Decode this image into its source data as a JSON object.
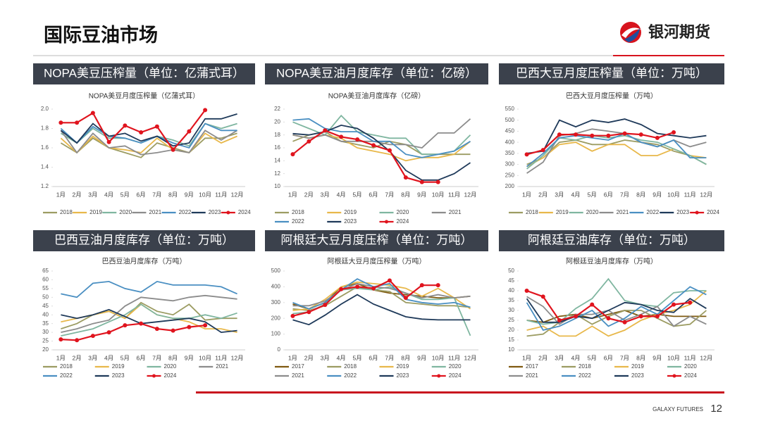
{
  "header": {
    "title": "国际豆油市场",
    "logo": "银河期货"
  },
  "footer": {
    "brand": "GALAXY FUTURES",
    "page": "12"
  },
  "chart_data": [
    {
      "type": "line",
      "title": "NOPA美豆压榨量（单位：亿蒲式耳）",
      "subtitle": "NOPA美豆月度压榨量（亿蒲式耳）",
      "categories": [
        "1月",
        "2月",
        "3月",
        "4月",
        "5月",
        "6月",
        "7月",
        "8月",
        "9月",
        "10月",
        "11月",
        "12月"
      ],
      "ylim": [
        1.2,
        2.0
      ],
      "yticks": [
        1.2,
        1.4,
        1.6,
        1.8,
        {
          "value": 2,
          "label": "2.0"
        }
      ],
      "series": [
        {
          "name": "2018",
          "color": "#9c9c62",
          "values": [
            1.65,
            1.55,
            1.7,
            1.6,
            1.55,
            1.5,
            1.65,
            1.6,
            1.55,
            1.7,
            1.7,
            1.75
          ]
        },
        {
          "name": "2019",
          "color": "#e8b84a",
          "values": [
            1.7,
            1.55,
            1.72,
            1.6,
            1.58,
            1.55,
            1.7,
            1.58,
            1.55,
            1.75,
            1.65,
            1.72
          ]
        },
        {
          "name": "2020",
          "color": "#7fb6a0",
          "values": [
            1.75,
            1.65,
            1.8,
            1.7,
            1.7,
            1.65,
            1.72,
            1.68,
            1.62,
            1.85,
            1.8,
            1.85
          ]
        },
        {
          "name": "2021",
          "color": "#8c8c8c",
          "values": [
            1.78,
            1.55,
            1.75,
            1.6,
            1.62,
            1.53,
            1.55,
            1.58,
            1.55,
            1.78,
            1.68,
            1.78
          ]
        },
        {
          "name": "2022",
          "color": "#4a8fc2",
          "values": [
            1.8,
            1.65,
            1.82,
            1.72,
            1.7,
            1.65,
            1.72,
            1.65,
            1.6,
            1.85,
            1.78,
            1.78
          ]
        },
        {
          "name": "2023",
          "color": "#1f3a5a",
          "values": [
            1.78,
            1.65,
            1.85,
            1.72,
            1.75,
            1.67,
            1.72,
            1.62,
            1.65,
            1.9,
            1.9,
            1.95
          ]
        },
        {
          "name": "2024",
          "color": "#e0141e",
          "values": [
            1.86,
            1.86,
            1.96,
            1.66,
            1.83,
            1.76,
            1.82,
            1.58,
            1.77,
            1.99,
            null,
            null
          ]
        }
      ]
    },
    {
      "type": "line",
      "title": "NOPA美豆油月度库存（单位：亿磅）",
      "subtitle": "NOPA美豆油月度库存（亿磅）",
      "categories": [
        "1月",
        "2月",
        "3月",
        "4月",
        "5月",
        "6月",
        "7月",
        "8月",
        "9月",
        "10月",
        "11月",
        "12月"
      ],
      "ylim": [
        10,
        22
      ],
      "yticks": [
        10,
        12,
        14,
        16,
        18,
        20,
        22
      ],
      "series": [
        {
          "name": "2018",
          "color": "#9c9c62",
          "values": [
            17,
            18,
            18.5,
            17,
            16.5,
            16,
            17,
            16.5,
            15,
            15,
            15,
            15
          ]
        },
        {
          "name": "2019",
          "color": "#e8b84a",
          "values": [
            18,
            17.5,
            18,
            17.5,
            16,
            15.5,
            15,
            14,
            14.5,
            14.5,
            15,
            17
          ]
        },
        {
          "name": "2020",
          "color": "#7fb6a0",
          "values": [
            20,
            19,
            18,
            21,
            18.5,
            18,
            17.5,
            17.5,
            15,
            15,
            15.5,
            18
          ]
        },
        {
          "name": "2021",
          "color": "#8c8c8c",
          "values": [
            18,
            17.5,
            18,
            17,
            17,
            17,
            16.5,
            16.5,
            16,
            18.3,
            18.3,
            20.5
          ]
        },
        {
          "name": "2022",
          "color": "#4a8fc2",
          "values": [
            20.3,
            20.5,
            19,
            18.5,
            18.5,
            17,
            17,
            15,
            14.5,
            15,
            15.5,
            17
          ]
        },
        {
          "name": "2023",
          "color": "#1f3a5a",
          "values": [
            18.2,
            18,
            18.5,
            19.5,
            19,
            17.5,
            15.5,
            12.5,
            11,
            11,
            12,
            13.7
          ]
        },
        {
          "name": "2024",
          "color": "#e0141e",
          "values": [
            15,
            17,
            18.7,
            17.7,
            17.3,
            16.4,
            15.6,
            11.4,
            10.7,
            10.7,
            null,
            null
          ]
        }
      ]
    },
    {
      "type": "line",
      "title": "巴西大豆月度压榨量（单位：万吨）",
      "subtitle": "巴西大豆月度压榨量（万吨）",
      "categories": [
        "1月",
        "2月",
        "3月",
        "4月",
        "5月",
        "6月",
        "7月",
        "8月",
        "9月",
        "10月",
        "11月",
        "12月"
      ],
      "ylim": [
        200,
        550
      ],
      "yticks": [
        200,
        250,
        300,
        350,
        400,
        450,
        500,
        550
      ],
      "series": [
        {
          "name": "2018",
          "color": "#9c9c62",
          "values": [
            300,
            330,
            400,
            410,
            390,
            390,
            410,
            400,
            390,
            360,
            340,
            300
          ]
        },
        {
          "name": "2019",
          "color": "#e8b84a",
          "values": [
            290,
            330,
            390,
            400,
            360,
            390,
            390,
            340,
            340,
            370,
            340,
            330
          ]
        },
        {
          "name": "2020",
          "color": "#7fb6a0",
          "values": [
            280,
            340,
            420,
            410,
            430,
            420,
            430,
            410,
            400,
            370,
            340,
            300
          ]
        },
        {
          "name": "2021",
          "color": "#8c8c8c",
          "values": [
            260,
            310,
            430,
            440,
            460,
            450,
            440,
            400,
            380,
            410,
            380,
            400
          ]
        },
        {
          "name": "2022",
          "color": "#4a8fc2",
          "values": [
            290,
            350,
            420,
            430,
            420,
            410,
            440,
            400,
            380,
            410,
            330,
            330
          ]
        },
        {
          "name": "2023",
          "color": "#1f3a5a",
          "values": [
            350,
            360,
            500,
            470,
            500,
            490,
            505,
            480,
            440,
            430,
            420,
            430
          ]
        },
        {
          "name": "2024",
          "color": "#e0141e",
          "values": [
            345,
            365,
            435,
            435,
            430,
            430,
            440,
            435,
            420,
            445,
            null,
            null
          ]
        }
      ]
    },
    {
      "type": "line",
      "title": "巴西豆油月度库存（单位：万吨）",
      "subtitle": "巴西豆油月度库存（万吨）",
      "categories": [
        "1月",
        "2月",
        "3月",
        "4月",
        "5月",
        "6月",
        "7月",
        "8月",
        "9月",
        "10月",
        "11月",
        "12月"
      ],
      "ylim": [
        20,
        65
      ],
      "yticks": [
        20,
        25,
        30,
        35,
        40,
        45,
        50,
        55,
        60,
        65
      ],
      "series": [
        {
          "name": "2018",
          "color": "#9c9c62",
          "values": [
            32,
            35,
            40,
            42,
            38,
            47,
            42,
            40,
            46,
            37,
            38,
            38
          ]
        },
        {
          "name": "2019",
          "color": "#e8b84a",
          "values": [
            36,
            38,
            40,
            42,
            38,
            46,
            40,
            38,
            36,
            32,
            32,
            30
          ]
        },
        {
          "name": "2020",
          "color": "#7fb6a0",
          "values": [
            28,
            30,
            32,
            36,
            40,
            46,
            40,
            38,
            38,
            40,
            38,
            41
          ]
        },
        {
          "name": "2021",
          "color": "#8c8c8c",
          "values": [
            30,
            32,
            35,
            37,
            45,
            50,
            49,
            48,
            50,
            51,
            50,
            49
          ]
        },
        {
          "name": "2022",
          "color": "#4a8fc2",
          "values": [
            52,
            50,
            58,
            59,
            55,
            53,
            59,
            57,
            57,
            57,
            56,
            52
          ]
        },
        {
          "name": "2023",
          "color": "#1f3a5a",
          "values": [
            40,
            38,
            40,
            43,
            39,
            35,
            36,
            37,
            38,
            36,
            30,
            31
          ]
        },
        {
          "name": "2024",
          "color": "#e0141e",
          "values": [
            26,
            25.5,
            28,
            30,
            34,
            35,
            32,
            31,
            33,
            34,
            null,
            null
          ]
        }
      ]
    },
    {
      "type": "line",
      "title": "阿根廷大豆月度压榨（单位：万吨）",
      "subtitle": "阿根廷大豆月度压榨量（万吨）",
      "categories": [
        "1月",
        "2月",
        "3月",
        "4月",
        "5月",
        "6月",
        "7月",
        "8月",
        "9月",
        "10月",
        "11月",
        "12月"
      ],
      "ylim": [
        0,
        500
      ],
      "yticks": [
        0,
        100,
        200,
        300,
        400,
        500
      ],
      "series": [
        {
          "name": "2017",
          "color": "#7f5a10",
          "values": [
            290,
            260,
            300,
            400,
            420,
            380,
            360,
            350,
            340,
            330,
            330,
            340
          ]
        },
        {
          "name": "2018",
          "color": "#9c9c62",
          "values": [
            260,
            250,
            280,
            340,
            400,
            380,
            370,
            300,
            290,
            280,
            280,
            270
          ]
        },
        {
          "name": "2019",
          "color": "#e8b84a",
          "values": [
            250,
            260,
            320,
            400,
            430,
            420,
            410,
            390,
            340,
            390,
            330,
            260
          ]
        },
        {
          "name": "2020",
          "color": "#7fb6a0",
          "values": [
            230,
            240,
            290,
            380,
            390,
            380,
            400,
            360,
            320,
            320,
            330,
            90
          ]
        },
        {
          "name": "2021",
          "color": "#8c8c8c",
          "values": [
            280,
            280,
            310,
            380,
            420,
            400,
            390,
            360,
            330,
            350,
            330,
            340
          ]
        },
        {
          "name": "2022",
          "color": "#4a8fc2",
          "values": [
            300,
            260,
            300,
            380,
            450,
            400,
            420,
            320,
            300,
            290,
            300,
            270
          ]
        },
        {
          "name": "2023",
          "color": "#1f3a5a",
          "values": [
            190,
            160,
            220,
            290,
            350,
            290,
            250,
            210,
            195,
            190,
            190,
            190
          ]
        },
        {
          "name": "2024",
          "color": "#e0141e",
          "values": [
            215,
            240,
            285,
            385,
            400,
            390,
            440,
            330,
            410,
            410,
            null,
            null
          ]
        }
      ]
    },
    {
      "type": "line",
      "title": "阿根廷豆油库存（单位：万吨）",
      "subtitle": "阿根廷豆油月度库存（万吨）",
      "categories": [
        "1月",
        "2月",
        "3月",
        "4月",
        "5月",
        "6月",
        "7月",
        "8月",
        "9月",
        "10月",
        "11月",
        "12月"
      ],
      "ylim": [
        10,
        50
      ],
      "yticks": [
        10,
        15,
        20,
        25,
        30,
        35,
        40,
        45,
        50
      ],
      "series": [
        {
          "name": "2017",
          "color": "#7f5a10",
          "values": [
            25,
            24,
            27,
            28,
            26,
            28,
            30,
            27,
            28,
            27,
            27,
            27
          ]
        },
        {
          "name": "2018",
          "color": "#9c9c62",
          "values": [
            17,
            18,
            24,
            28,
            23,
            27,
            30,
            30,
            26,
            22,
            23,
            30
          ]
        },
        {
          "name": "2019",
          "color": "#e8b84a",
          "values": [
            20,
            22,
            17,
            17,
            22,
            17,
            20,
            25,
            28,
            30,
            33,
            40
          ]
        },
        {
          "name": "2020",
          "color": "#7fb6a0",
          "values": [
            25,
            23,
            24,
            31,
            36,
            46,
            35,
            33,
            32,
            39,
            40,
            40
          ]
        },
        {
          "name": "2021",
          "color": "#8c8c8c",
          "values": [
            37,
            32,
            23,
            28,
            28,
            30,
            25,
            28,
            32,
            22,
            27,
            23
          ]
        },
        {
          "name": "2022",
          "color": "#4a8fc2",
          "values": [
            34,
            20,
            22,
            26,
            30,
            22,
            26,
            32,
            28,
            35,
            42,
            38
          ]
        },
        {
          "name": "2023",
          "color": "#1f3a5a",
          "values": [
            36,
            24,
            24,
            27,
            26,
            30,
            34,
            33,
            30,
            29,
            36,
            31
          ]
        },
        {
          "name": "2024",
          "color": "#e0141e",
          "values": [
            40,
            37,
            25,
            27,
            33,
            26,
            24,
            27,
            27,
            33,
            34,
            null
          ]
        }
      ]
    }
  ]
}
